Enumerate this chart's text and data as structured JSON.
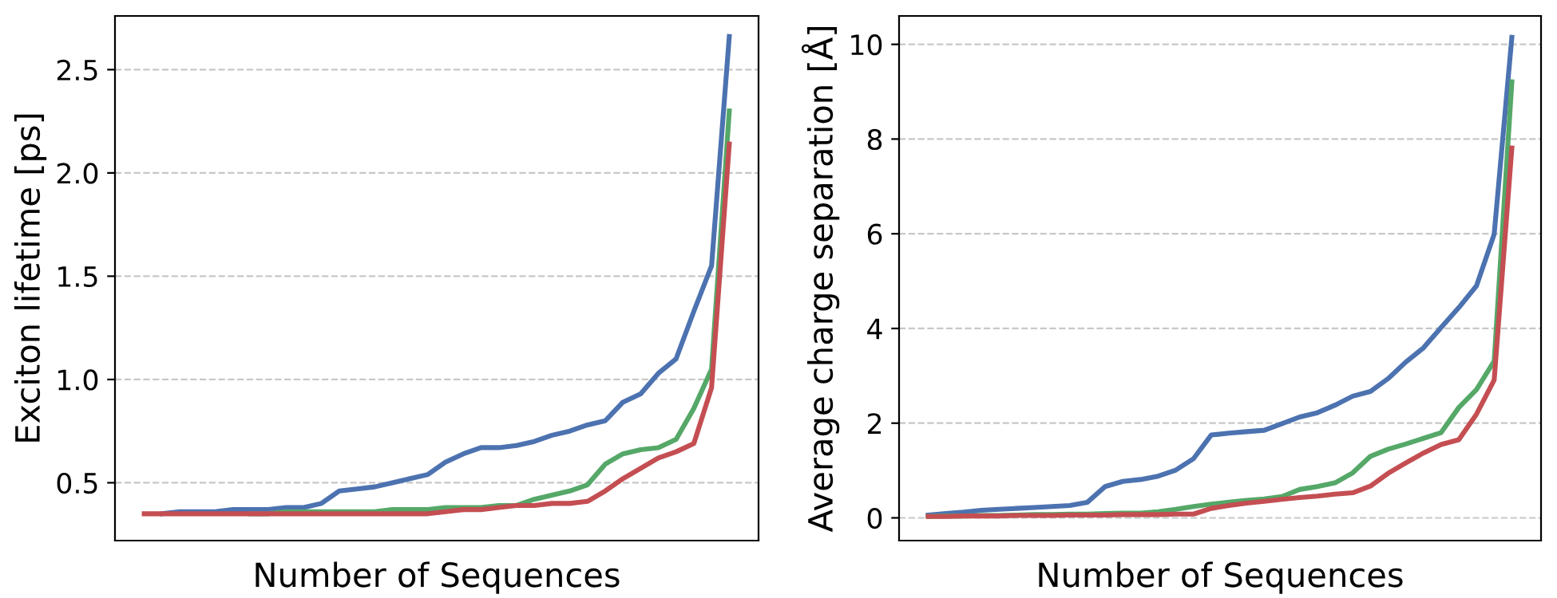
{
  "chart_data": [
    {
      "type": "line",
      "xlabel": "Number of Sequences",
      "ylabel": "Exciton lifetime [ps]",
      "categories": [
        null,
        null,
        null,
        null,
        null,
        null,
        null,
        null,
        null,
        null,
        null,
        null,
        null,
        null,
        null,
        null,
        null,
        null,
        null,
        null,
        null,
        null,
        null,
        null,
        null,
        null,
        null,
        null,
        null,
        null,
        null,
        null,
        null,
        null
      ],
      "ylim": [
        0.22,
        2.76
      ],
      "yticks": [
        0.5,
        {
          "value": 1,
          "label": "1.0"
        },
        1.5,
        {
          "value": 2,
          "label": "2.0"
        },
        2.5
      ],
      "grid": "y",
      "line_style": "solid",
      "series": [
        {
          "color": "#4c72b0",
          "values": [
            null,
            0.35,
            0.36,
            0.36,
            0.36,
            0.37,
            0.37,
            0.37,
            0.38,
            0.38,
            0.4,
            0.46,
            0.47,
            0.48,
            0.5,
            0.52,
            0.54,
            0.6,
            0.64,
            0.67,
            0.67,
            0.68,
            0.7,
            0.73,
            0.75,
            0.78,
            0.8,
            0.89,
            0.93,
            1.03,
            1.1,
            1.33,
            1.55,
            2.66
          ]
        },
        {
          "color": "#55a868",
          "values": [
            null,
            null,
            null,
            null,
            null,
            null,
            0.35,
            0.35,
            0.36,
            0.36,
            0.36,
            0.36,
            0.36,
            0.36,
            0.37,
            0.37,
            0.37,
            0.38,
            0.38,
            0.38,
            0.39,
            0.39,
            0.42,
            0.44,
            0.46,
            0.49,
            0.59,
            0.64,
            0.66,
            0.67,
            0.71,
            0.86,
            1.05,
            2.3
          ]
        },
        {
          "color": "#c44e52",
          "values": [
            0.35,
            0.35,
            0.35,
            0.35,
            0.35,
            0.35,
            0.35,
            0.35,
            0.35,
            0.35,
            0.35,
            0.35,
            0.35,
            0.35,
            0.35,
            0.35,
            0.35,
            0.36,
            0.37,
            0.37,
            0.38,
            0.39,
            0.39,
            0.4,
            0.4,
            0.41,
            0.46,
            0.52,
            0.57,
            0.62,
            0.65,
            0.69,
            0.96,
            2.14
          ]
        }
      ]
    },
    {
      "type": "line",
      "xlabel": "Number of Sequences",
      "ylabel": "Average charge separation [Å]",
      "categories": [
        null,
        null,
        null,
        null,
        null,
        null,
        null,
        null,
        null,
        null,
        null,
        null,
        null,
        null,
        null,
        null,
        null,
        null,
        null,
        null,
        null,
        null,
        null,
        null,
        null,
        null,
        null,
        null,
        null,
        null,
        null,
        null,
        null,
        null
      ],
      "ylim": [
        -0.48,
        10.6
      ],
      "yticks": [
        0,
        2,
        4,
        6,
        8,
        10
      ],
      "grid": "y",
      "line_style": "solid",
      "series": [
        {
          "color": "#4c72b0",
          "values": [
            0.06,
            0.09,
            0.12,
            0.16,
            0.18,
            0.2,
            0.22,
            0.24,
            0.26,
            0.33,
            0.66,
            0.77,
            0.81,
            0.88,
            1.01,
            1.25,
            1.75,
            1.79,
            1.82,
            1.85,
            1.99,
            2.13,
            2.22,
            2.38,
            2.57,
            2.67,
            2.94,
            3.29,
            3.59,
            4.02,
            4.44,
            4.9,
            5.99,
            10.15
          ]
        },
        {
          "color": "#55a868",
          "values": [
            0.03,
            0.04,
            0.04,
            0.05,
            0.05,
            0.06,
            0.07,
            0.07,
            0.08,
            0.08,
            0.09,
            0.1,
            0.1,
            0.13,
            0.18,
            0.24,
            0.29,
            0.33,
            0.37,
            0.4,
            0.45,
            0.6,
            0.66,
            0.74,
            0.95,
            1.3,
            1.45,
            1.56,
            1.68,
            1.8,
            2.33,
            2.71,
            3.31,
            9.21
          ]
        },
        {
          "color": "#c44e52",
          "values": [
            0.03,
            0.03,
            0.04,
            0.04,
            0.04,
            0.05,
            0.05,
            0.05,
            0.06,
            0.06,
            0.06,
            0.07,
            0.07,
            0.07,
            0.08,
            0.08,
            0.2,
            0.26,
            0.31,
            0.35,
            0.39,
            0.43,
            0.46,
            0.5,
            0.53,
            0.67,
            0.94,
            1.16,
            1.37,
            1.55,
            1.65,
            2.19,
            2.91,
            7.81
          ]
        }
      ]
    }
  ]
}
